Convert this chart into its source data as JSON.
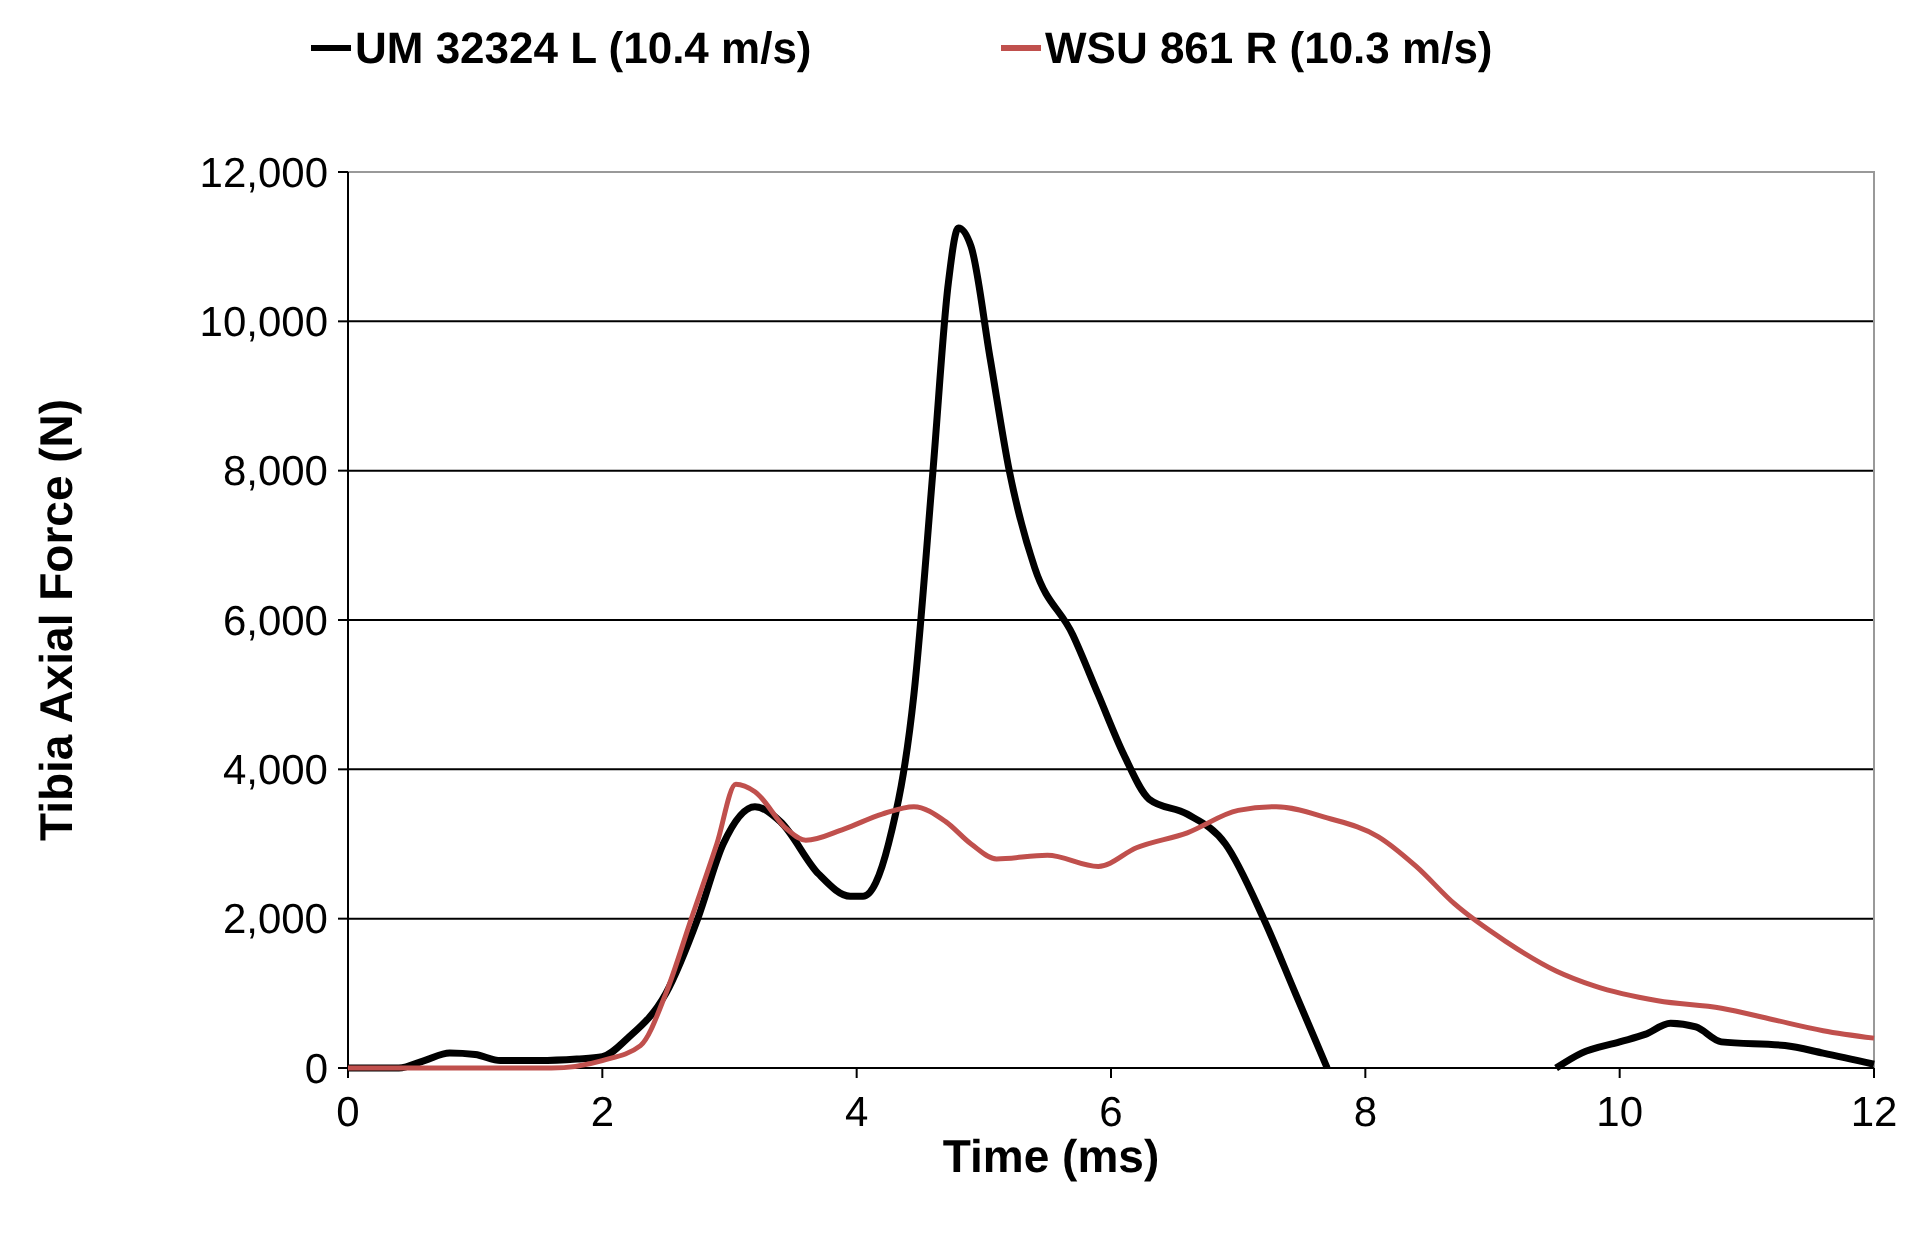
{
  "chart_data": {
    "type": "line",
    "xlabel": "Time (ms)",
    "ylabel": "Tibia Axial Force (N)",
    "xlim": [
      0,
      12
    ],
    "xticks": [
      0,
      2,
      4,
      6,
      8,
      10,
      12
    ],
    "ylim": [
      0,
      12000
    ],
    "yticks": [
      {
        "value": 0,
        "label": "0"
      },
      {
        "value": 2000,
        "label": "2,000"
      },
      {
        "value": 4000,
        "label": "4,000"
      },
      {
        "value": 6000,
        "label": "6,000"
      },
      {
        "value": 8000,
        "label": "8,000"
      },
      {
        "value": 10000,
        "label": "10,000"
      },
      {
        "value": 12000,
        "label": "12,000"
      }
    ],
    "grid": "y",
    "legend": "top",
    "line_style": "solid",
    "series": [
      {
        "name": "UM 32324 L (10.4 m/s)",
        "color": "#000000",
        "x": [
          0,
          0.4,
          0.6,
          0.8,
          1.0,
          1.2,
          1.5,
          1.8,
          2.0,
          2.2,
          2.5,
          2.75,
          2.95,
          3.2,
          3.4,
          3.7,
          3.95,
          4.05,
          4.25,
          4.45,
          4.6,
          4.72,
          4.8,
          4.9,
          5.05,
          5.2,
          5.4,
          5.7,
          5.9,
          6.1,
          6.3,
          6.6,
          6.9,
          7.2,
          7.45,
          7.7,
          8.6,
          9.5,
          9.7,
          10.0,
          10.2,
          10.4,
          10.6,
          10.8,
          11.3,
          11.6,
          12
        ],
        "values": [
          0,
          0,
          100,
          200,
          180,
          100,
          100,
          120,
          150,
          400,
          1000,
          2000,
          3000,
          3500,
          3300,
          2600,
          2300,
          2300,
          3000,
          5000,
          8000,
          10500,
          11250,
          11000,
          9500,
          8000,
          6700,
          5800,
          5000,
          4200,
          3600,
          3400,
          3000,
          2000,
          1000,
          0,
          null,
          0,
          200,
          350,
          450,
          600,
          550,
          350,
          300,
          200,
          50
        ]
      },
      {
        "name": "WSU 861 R (10.3 m/s)",
        "color": "#c0504d",
        "x": [
          0,
          1.6,
          2.0,
          2.3,
          2.5,
          2.7,
          2.9,
          3.05,
          3.2,
          3.45,
          3.6,
          3.9,
          4.2,
          4.45,
          4.7,
          4.9,
          5.1,
          5.5,
          5.9,
          6.2,
          6.6,
          7.0,
          7.3,
          7.7,
          8.1,
          8.4,
          8.7,
          9.1,
          9.5,
          9.8,
          10.3,
          10.8,
          11.2,
          11.6,
          12
        ],
        "values": [
          0,
          0,
          100,
          300,
          1000,
          2000,
          3000,
          3800,
          3700,
          3200,
          3050,
          3200,
          3400,
          3500,
          3300,
          3000,
          2800,
          2850,
          2700,
          2950,
          3150,
          3450,
          3500,
          3350,
          3100,
          2700,
          2200,
          1700,
          1300,
          1100,
          900,
          800,
          650,
          500,
          400
        ]
      }
    ]
  }
}
